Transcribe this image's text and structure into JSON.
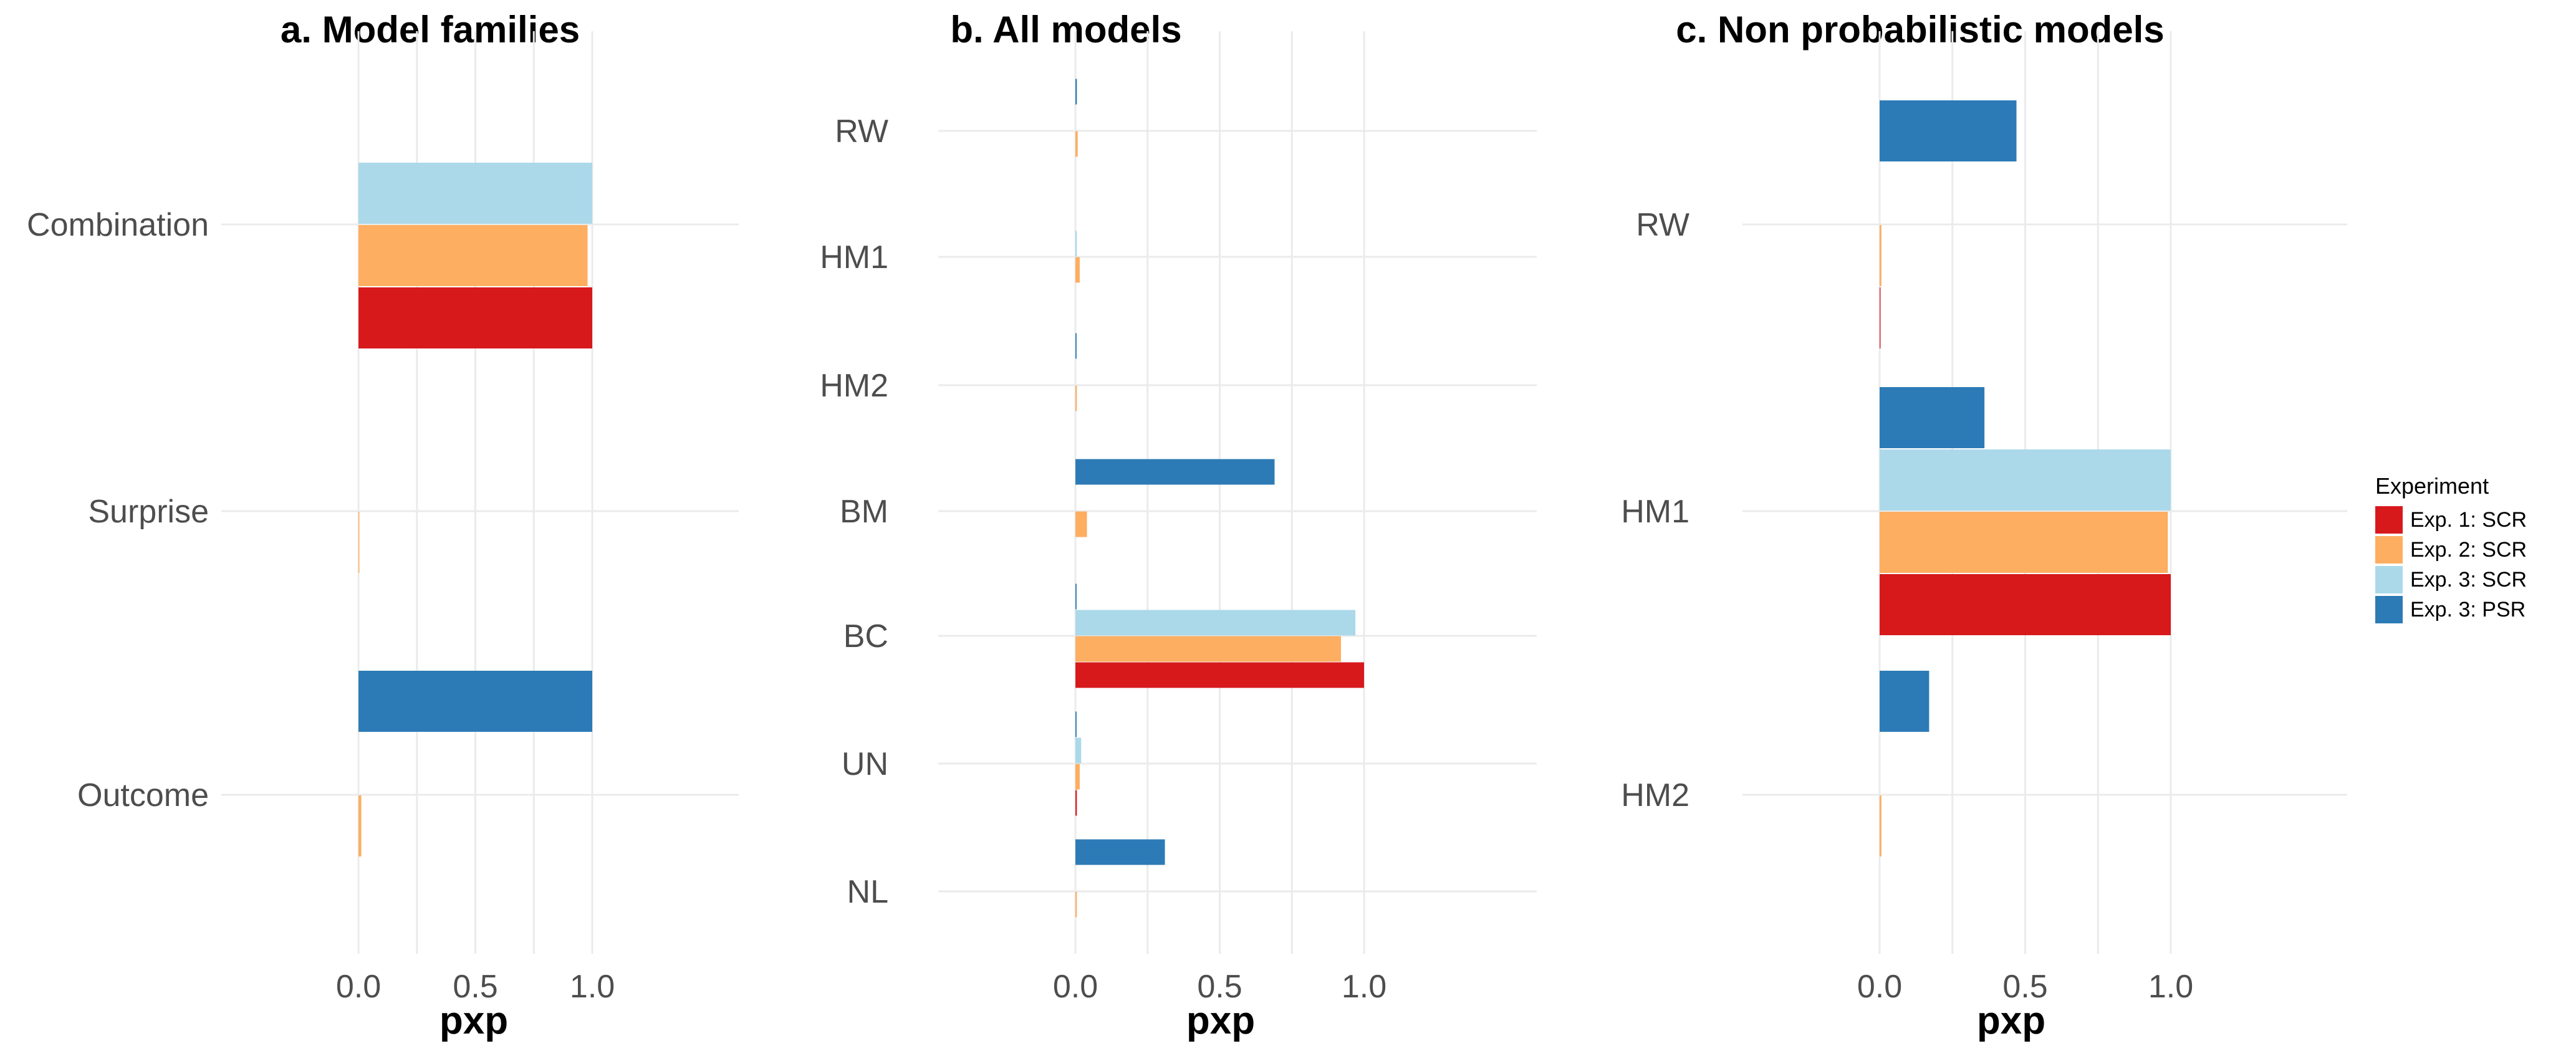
{
  "chart_data": [
    {
      "type": "bar",
      "orientation": "horizontal",
      "title": "a. Model families",
      "xlabel": "pxp",
      "ylabel": "",
      "xlim": [
        0,
        1
      ],
      "xticks": [
        "0.0",
        "0.5",
        "1.0"
      ],
      "categories": [
        "Combination",
        "Surprise",
        "Outcome"
      ],
      "series": [
        {
          "name": "Exp. 1: SCR",
          "values": [
            1.0,
            0.0,
            0.0
          ]
        },
        {
          "name": "Exp. 2: SCR",
          "values": [
            0.98,
            0.004,
            0.012
          ]
        },
        {
          "name": "Exp. 3: SCR",
          "values": [
            1.0,
            0.0,
            0.0
          ]
        },
        {
          "name": "Exp. 3: PSR",
          "values": [
            0.0,
            0.0,
            1.0
          ]
        }
      ]
    },
    {
      "type": "bar",
      "orientation": "horizontal",
      "title": "b. All models",
      "xlabel": "pxp",
      "ylabel": "",
      "xlim": [
        0,
        1
      ],
      "xticks": [
        "0.0",
        "0.5",
        "1.0"
      ],
      "categories": [
        "RW",
        "HM1",
        "HM2",
        "BM",
        "BC",
        "UN",
        "NL"
      ],
      "series": [
        {
          "name": "Exp. 1: SCR",
          "values": [
            0.0,
            0.0,
            0.0,
            0.0,
            1.0,
            0.005,
            0.0
          ]
        },
        {
          "name": "Exp. 2: SCR",
          "values": [
            0.008,
            0.015,
            0.005,
            0.04,
            0.92,
            0.015,
            0.005
          ]
        },
        {
          "name": "Exp. 3: SCR",
          "values": [
            0.0,
            0.005,
            0.0,
            0.0,
            0.97,
            0.02,
            0.0
          ]
        },
        {
          "name": "Exp. 3: PSR",
          "values": [
            0.005,
            0.0,
            0.004,
            0.69,
            0.004,
            0.004,
            0.31
          ]
        }
      ]
    },
    {
      "type": "bar",
      "orientation": "horizontal",
      "title": "c. Non probabilistic models",
      "xlabel": "pxp",
      "ylabel": "",
      "xlim": [
        0,
        1
      ],
      "xticks": [
        "0.0",
        "0.5",
        "1.0"
      ],
      "categories": [
        "RW",
        "HM1",
        "HM2"
      ],
      "series": [
        {
          "name": "Exp. 1: SCR",
          "values": [
            0.003,
            1.0,
            0.0
          ]
        },
        {
          "name": "Exp. 2: SCR",
          "values": [
            0.006,
            0.99,
            0.006
          ]
        },
        {
          "name": "Exp. 3: SCR",
          "values": [
            0.0,
            1.0,
            0.0
          ]
        },
        {
          "name": "Exp. 3: PSR",
          "values": [
            0.47,
            0.36,
            0.17
          ]
        }
      ]
    }
  ],
  "legend": {
    "title": "Experiment",
    "entries": [
      {
        "label": "Exp. 1: SCR",
        "color": "#d7191c"
      },
      {
        "label": "Exp. 2: SCR",
        "color": "#fdae61"
      },
      {
        "label": "Exp. 3: SCR",
        "color": "#abd9e9"
      },
      {
        "label": "Exp. 3: PSR",
        "color": "#2c7bb6"
      }
    ]
  }
}
